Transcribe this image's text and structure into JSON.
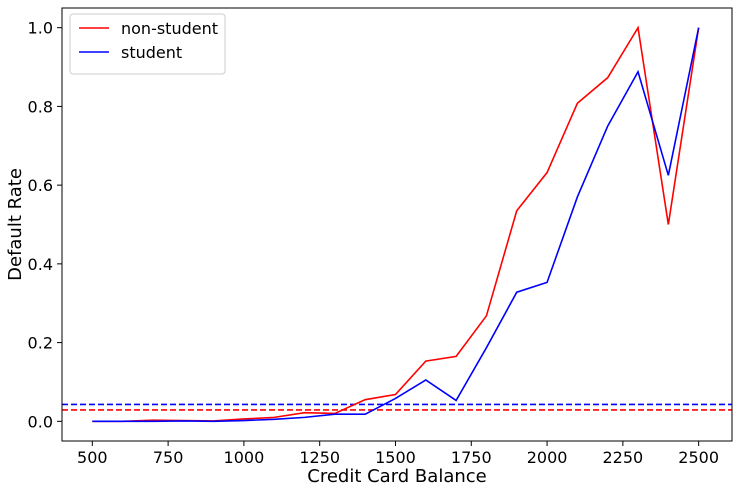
{
  "chart_data": {
    "type": "line",
    "xlabel": "Credit Card Balance",
    "ylabel": "Default Rate",
    "xlim": [
      400,
      2610
    ],
    "ylim": [
      -0.05,
      1.05
    ],
    "xticks": [
      500,
      750,
      1000,
      1250,
      1500,
      1750,
      2000,
      2250,
      2500
    ],
    "xtick_labels": [
      "500",
      "750",
      "1000",
      "1250",
      "1500",
      "1750",
      "2000",
      "2250",
      "2500"
    ],
    "yticks": [
      0.0,
      0.2,
      0.4,
      0.6,
      0.8,
      1.0
    ],
    "ytick_labels": [
      "0.0",
      "0.2",
      "0.4",
      "0.6",
      "0.8",
      "1.0"
    ],
    "legend_position": "top-left",
    "x": [
      500,
      600,
      700,
      800,
      900,
      1000,
      1100,
      1200,
      1300,
      1400,
      1500,
      1600,
      1700,
      1800,
      1900,
      2000,
      2100,
      2200,
      2300,
      2400,
      2500
    ],
    "series": [
      {
        "name": "non-student",
        "color": "#ff0000",
        "values": [
          0.0,
          0.0,
          0.003,
          0.002,
          0.001,
          0.006,
          0.01,
          0.022,
          0.02,
          0.055,
          0.068,
          0.153,
          0.165,
          0.268,
          0.535,
          0.632,
          0.808,
          0.873,
          1.0,
          0.5,
          1.0
        ]
      },
      {
        "name": "student",
        "color": "#0000ff",
        "values": [
          0.0,
          0.0,
          0.0,
          0.001,
          0.0,
          0.002,
          0.005,
          0.01,
          0.018,
          0.018,
          0.058,
          0.105,
          0.053,
          0.187,
          0.328,
          0.353,
          0.57,
          0.75,
          0.888,
          0.625,
          1.0
        ]
      }
    ],
    "reference_lines": [
      {
        "series": "student",
        "y": 0.043,
        "color": "#0000ff",
        "style": "dashed"
      },
      {
        "series": "non-student",
        "y": 0.029,
        "color": "#ff0000",
        "style": "dashed"
      }
    ],
    "grid": false
  }
}
